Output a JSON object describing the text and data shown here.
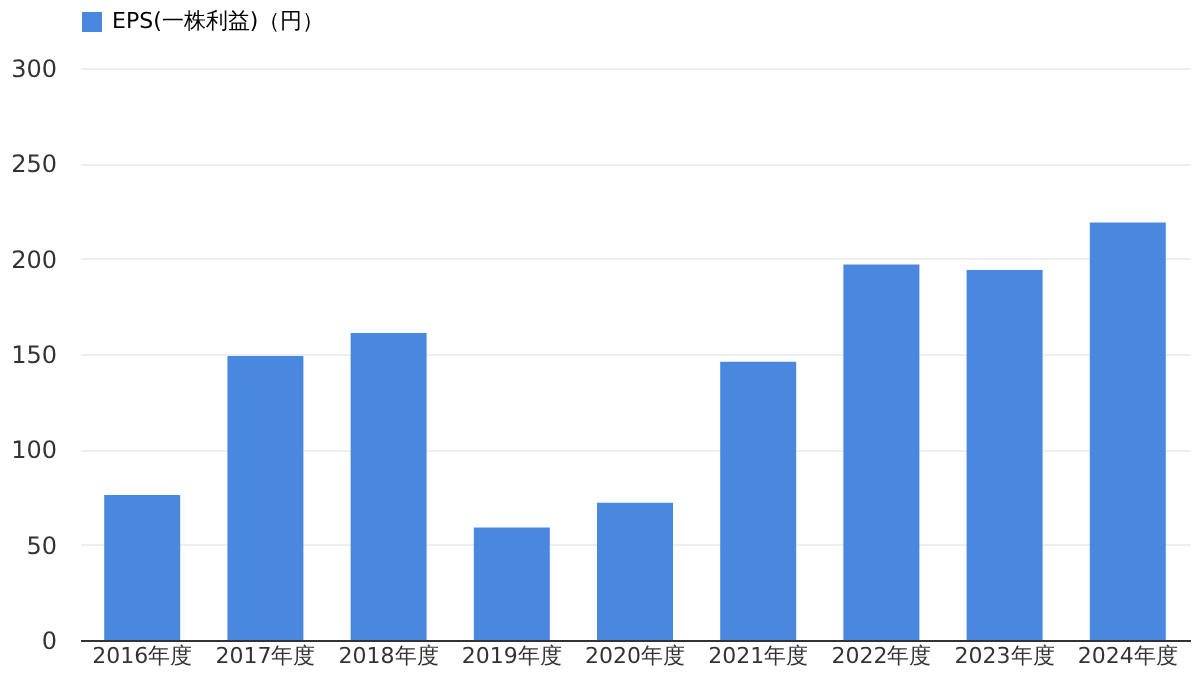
{
  "chart_data": {
    "type": "bar",
    "categories": [
      "2016年度",
      "2017年度",
      "2018年度",
      "2019年度",
      "2020年度",
      "2021年度",
      "2022年度",
      "2023年度",
      "2024年度"
    ],
    "series": [
      {
        "name": "EPS(一株利益)（円）",
        "color": "#4a88e0",
        "values": [
          76,
          149,
          161,
          59,
          72,
          146,
          197,
          194,
          219
        ]
      }
    ],
    "ylim": [
      0,
      300
    ],
    "yticks": [
      0,
      50,
      100,
      150,
      200,
      250,
      300
    ],
    "grid": "y",
    "legend": "top"
  }
}
